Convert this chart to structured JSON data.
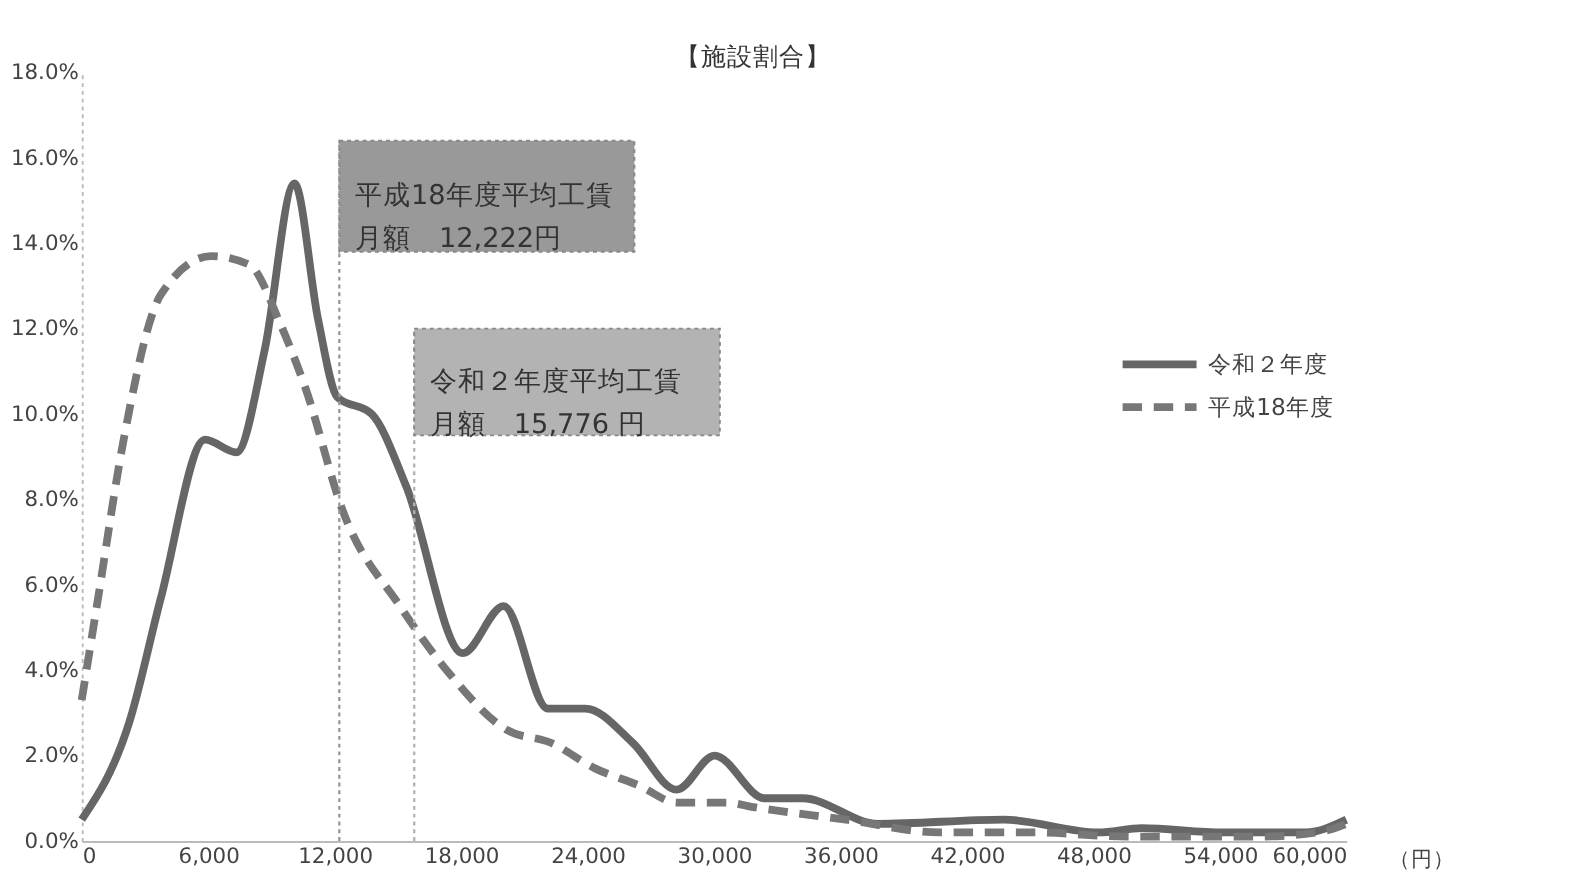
{
  "chart_data": {
    "type": "line",
    "title": "【施設割合】",
    "xlabel": "（円）",
    "xlim": [
      0,
      60000
    ],
    "xticks": [
      {
        "value": 0,
        "label": "0"
      },
      {
        "value": 6000,
        "label": "6,000"
      },
      {
        "value": 12000,
        "label": "12,000"
      },
      {
        "value": 18000,
        "label": "18,000"
      },
      {
        "value": 24000,
        "label": "24,000"
      },
      {
        "value": 30000,
        "label": "30,000"
      },
      {
        "value": 36000,
        "label": "36,000"
      },
      {
        "value": 42000,
        "label": "42,000"
      },
      {
        "value": 48000,
        "label": "48,000"
      },
      {
        "value": 54000,
        "label": "54,000"
      },
      {
        "value": 60000,
        "label": "60,000"
      }
    ],
    "ylim": [
      0,
      18
    ],
    "yticks": [
      {
        "value": 0,
        "label": "0.0%"
      },
      {
        "value": 2,
        "label": "2.0%"
      },
      {
        "value": 4,
        "label": "4.0%"
      },
      {
        "value": 6,
        "label": "6.0%"
      },
      {
        "value": 8,
        "label": "8.0%"
      },
      {
        "value": 10,
        "label": "10.0%"
      },
      {
        "value": 12,
        "label": "12.0%"
      },
      {
        "value": 14,
        "label": "14.0%"
      },
      {
        "value": 16,
        "label": "16.0%"
      },
      {
        "value": 18,
        "label": "18.0%"
      }
    ],
    "grid": false,
    "legend": "right",
    "marker": "none",
    "series": [
      {
        "name": "令和２年度",
        "color": "#666666",
        "line_style": "solid",
        "x": [
          0,
          2270,
          3760,
          5850,
          7340,
          8680,
          10090,
          11220,
          12120,
          13760,
          15400,
          18080,
          20020,
          22110,
          23900,
          26140,
          28230,
          30020,
          32400,
          34200,
          37780,
          43750,
          48230,
          50300,
          54160,
          58070,
          60000
        ],
        "values": [
          0.5,
          2.8,
          5.7,
          9.4,
          9.1,
          11.5,
          15.4,
          12.2,
          10.4,
          10.0,
          8.3,
          4.4,
          5.5,
          3.1,
          3.1,
          2.3,
          1.2,
          2.0,
          1.0,
          1.0,
          0.4,
          0.5,
          0.2,
          0.3,
          0.2,
          0.2,
          0.5
        ]
      },
      {
        "name": "平成18年度",
        "color": "#777777",
        "line_style": "dashed",
        "x": [
          0,
          780,
          1990,
          3760,
          6150,
          7940,
          9430,
          10620,
          12410,
          15100,
          17480,
          20170,
          22260,
          24350,
          26440,
          28230,
          30620,
          31780,
          36260,
          40730,
          45210,
          49690,
          55690,
          58640,
          60000
        ],
        "values": [
          3.3,
          5.7,
          9.4,
          12.8,
          13.7,
          13.5,
          12.1,
          10.6,
          7.7,
          5.5,
          3.9,
          2.6,
          2.3,
          1.7,
          1.3,
          0.9,
          0.9,
          0.8,
          0.5,
          0.2,
          0.2,
          0.1,
          0.1,
          0.2,
          0.4
        ]
      }
    ],
    "ref_lines": [
      {
        "axis": "x",
        "value": 12222,
        "label": "平成18年度平均工賃月額　12,222円",
        "color": "#999999",
        "line_style": "dotted"
      },
      {
        "axis": "x",
        "value": 15776,
        "label": "令和２年度平均工賃月額　15,776 円",
        "color": "#b3b3b3",
        "line_style": "dotted"
      }
    ]
  }
}
